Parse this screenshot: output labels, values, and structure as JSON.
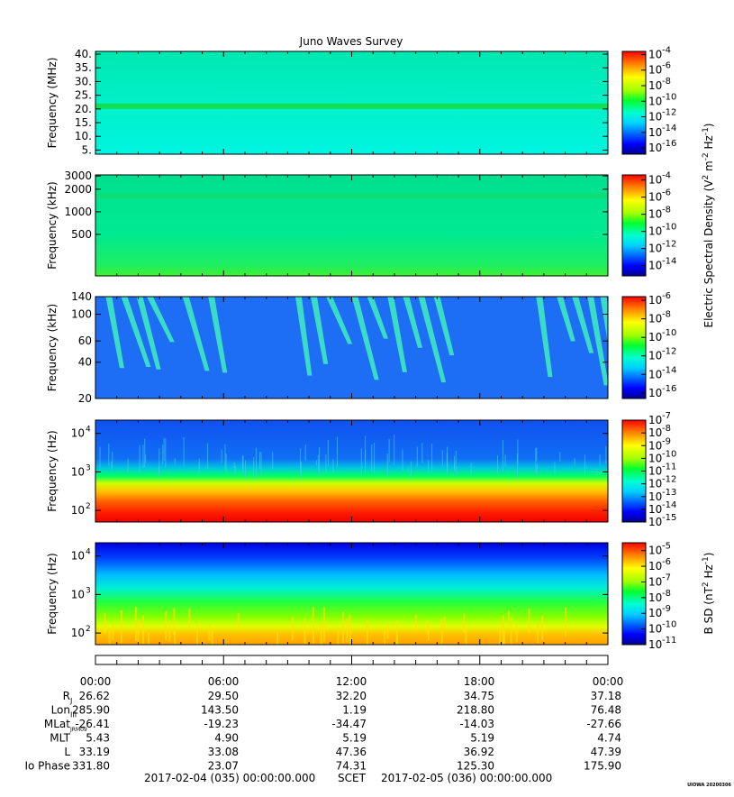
{
  "title": "Juno Waves Survey",
  "panels": [
    {
      "id": "panel-1",
      "ylabel": "Frequency (MHz)",
      "yscale": "linear",
      "yrange": [
        3.5,
        41
      ],
      "ticks": [
        {
          "v": 40,
          "label": "40."
        },
        {
          "v": 35,
          "label": "35."
        },
        {
          "v": 30,
          "label": "30."
        },
        {
          "v": 25,
          "label": "25."
        },
        {
          "v": 20,
          "label": "20."
        },
        {
          "v": 15,
          "label": "15."
        },
        {
          "v": 10,
          "label": "10."
        },
        {
          "v": 5,
          "label": "5."
        }
      ],
      "cbar": {
        "ticks": [
          "-4",
          "-6",
          "-8",
          "-10",
          "-12",
          "-14",
          "-16"
        ],
        "range": [
          -3.6,
          -16.8
        ]
      }
    },
    {
      "id": "panel-2",
      "ylabel": "Frequency (kHz)",
      "yscale": "log",
      "yrange": [
        140,
        3100
      ],
      "ticks": [
        {
          "v": 3000,
          "label": "3000"
        },
        {
          "v": 2000,
          "label": "2000"
        },
        {
          "v": 1000,
          "label": "1000"
        },
        {
          "v": 500,
          "label": "500"
        }
      ],
      "cbar": {
        "ticks": [
          "-4",
          "-6",
          "-8",
          "-10",
          "-12",
          "-14"
        ],
        "range": [
          -3.4,
          -15.2
        ]
      }
    },
    {
      "id": "panel-3",
      "ylabel": "Frequency (kHz)",
      "yscale": "log",
      "yrange": [
        20,
        140
      ],
      "ticks": [
        {
          "v": 140,
          "label": "140"
        },
        {
          "v": 100,
          "label": "100"
        },
        {
          "v": 60,
          "label": "60"
        },
        {
          "v": 40,
          "label": "40"
        },
        {
          "v": 20,
          "label": "20"
        }
      ],
      "cbar": {
        "ticks": [
          "-6",
          "-8",
          "-10",
          "-12",
          "-14",
          "-16"
        ],
        "range": [
          -5.6,
          -16.6
        ]
      }
    },
    {
      "id": "panel-4",
      "ylabel": "Frequency (Hz)",
      "yscale": "log",
      "yrange": [
        50,
        22000
      ],
      "ticks": [
        {
          "v": 10000,
          "base": "10",
          "exp": "4"
        },
        {
          "v": 1000,
          "base": "10",
          "exp": "3"
        },
        {
          "v": 100,
          "base": "10",
          "exp": "2"
        }
      ],
      "cbar": {
        "ticks": [
          "-7",
          "-8",
          "-9",
          "-10",
          "-11",
          "-12",
          "-13",
          "-14",
          "-15"
        ],
        "range": [
          -7,
          -15
        ]
      }
    },
    {
      "id": "panel-5",
      "ylabel": "Frequency (Hz)",
      "yscale": "log",
      "yrange": [
        50,
        22000
      ],
      "ticks": [
        {
          "v": 10000,
          "base": "10",
          "exp": "4"
        },
        {
          "v": 1000,
          "base": "10",
          "exp": "3"
        },
        {
          "v": 100,
          "base": "10",
          "exp": "2"
        }
      ],
      "cbar": {
        "ticks": [
          "-5",
          "-6",
          "-7",
          "-8",
          "-9",
          "-10",
          "-11"
        ],
        "range": [
          -4.5,
          -11
        ]
      }
    }
  ],
  "colorbar_labels": {
    "electric": {
      "prefix": "Electric Spectral Density (V",
      "sup1": "2",
      "mid": " m",
      "sup2": "-2",
      "mid2": " Hz",
      "sup3": "-1",
      "suffix": ")"
    },
    "magnetic": {
      "prefix": "B SD (nT",
      "sup1": "2",
      "mid": " Hz",
      "sup2": "-1",
      "suffix": ")"
    }
  },
  "time_ticks": [
    "00:00",
    "06:00",
    "12:00",
    "18:00",
    "00:00"
  ],
  "ephemeris": {
    "rows": [
      {
        "label": "R",
        "sub": "J",
        "values": [
          "26.62",
          "29.50",
          "32.20",
          "34.75",
          "37.18"
        ]
      },
      {
        "label": "Lon",
        "sub": "III",
        "values": [
          "285.90",
          "143.50",
          "1.19",
          "218.80",
          "76.48"
        ]
      },
      {
        "label": "MLat",
        "sub": "JRM09",
        "values": [
          "-26.41",
          "-19.23",
          "-34.47",
          "-14.03",
          "-27.66"
        ]
      },
      {
        "label": "MLT",
        "sub": "",
        "values": [
          "5.43",
          "4.90",
          "5.19",
          "5.19",
          "4.74"
        ]
      },
      {
        "label": "L",
        "sub": "",
        "values": [
          "33.19",
          "33.08",
          "47.36",
          "36.92",
          "47.39"
        ]
      },
      {
        "label": "Io Phase",
        "sub": "",
        "values": [
          "331.80",
          "23.07",
          "74.31",
          "125.30",
          "175.90"
        ]
      }
    ]
  },
  "footer": {
    "start": "2017-02-04 (035) 00:00:00.000",
    "mid": "SCET",
    "end": "2017-02-05 (036) 00:00:00.000"
  },
  "stamp": "UIOWA 20200306",
  "chart_data": {
    "type": "heatmap",
    "title": "Juno Waves Survey",
    "x_range": [
      "2017-02-04 (035) 00:00:00.000",
      "2017-02-05 (036) 00:00:00.000"
    ],
    "x_ticks": [
      "00:00",
      "06:00",
      "12:00",
      "18:00",
      "00:00"
    ],
    "series": [
      {
        "panel": 1,
        "ylabel": "Frequency (MHz)",
        "ylim": [
          3.5,
          41
        ],
        "colorbar_log10": [
          -16,
          -4
        ],
        "features": "background near 10^-13; narrow band near 21 MHz"
      },
      {
        "panel": 2,
        "ylabel": "Frequency (kHz)",
        "ylim": [
          140,
          3100
        ],
        "colorbar_log10": [
          -14,
          -4
        ],
        "features": "band near 1600 kHz; stronger emission at lowest frequencies"
      },
      {
        "panel": 3,
        "ylabel": "Frequency (kHz)",
        "ylim": [
          20,
          140
        ],
        "colorbar_log10": [
          -16,
          -6
        ],
        "features": "drifting bursts near 01:00, 03:30, 10:00-13:00, 14:00-16:00, 21:00-24:00"
      },
      {
        "panel": 4,
        "ylabel": "Frequency (Hz)",
        "ylim": [
          50,
          22000
        ],
        "colorbar_log10": [
          -15,
          -7
        ],
        "features": "intense below 300 Hz, cutoff near 1500 Hz"
      },
      {
        "panel": 5,
        "ylabel": "Frequency (Hz)",
        "ylim": [
          50,
          22000
        ],
        "colorbar_log10": [
          -11,
          -5
        ],
        "features": "strong below 200 Hz, weak above 5 kHz"
      }
    ],
    "colorbar_label_electric": "Electric Spectral Density (V2 m-2 Hz-1)",
    "colorbar_label_magnetic": "B SD (nT2 Hz-1)"
  }
}
